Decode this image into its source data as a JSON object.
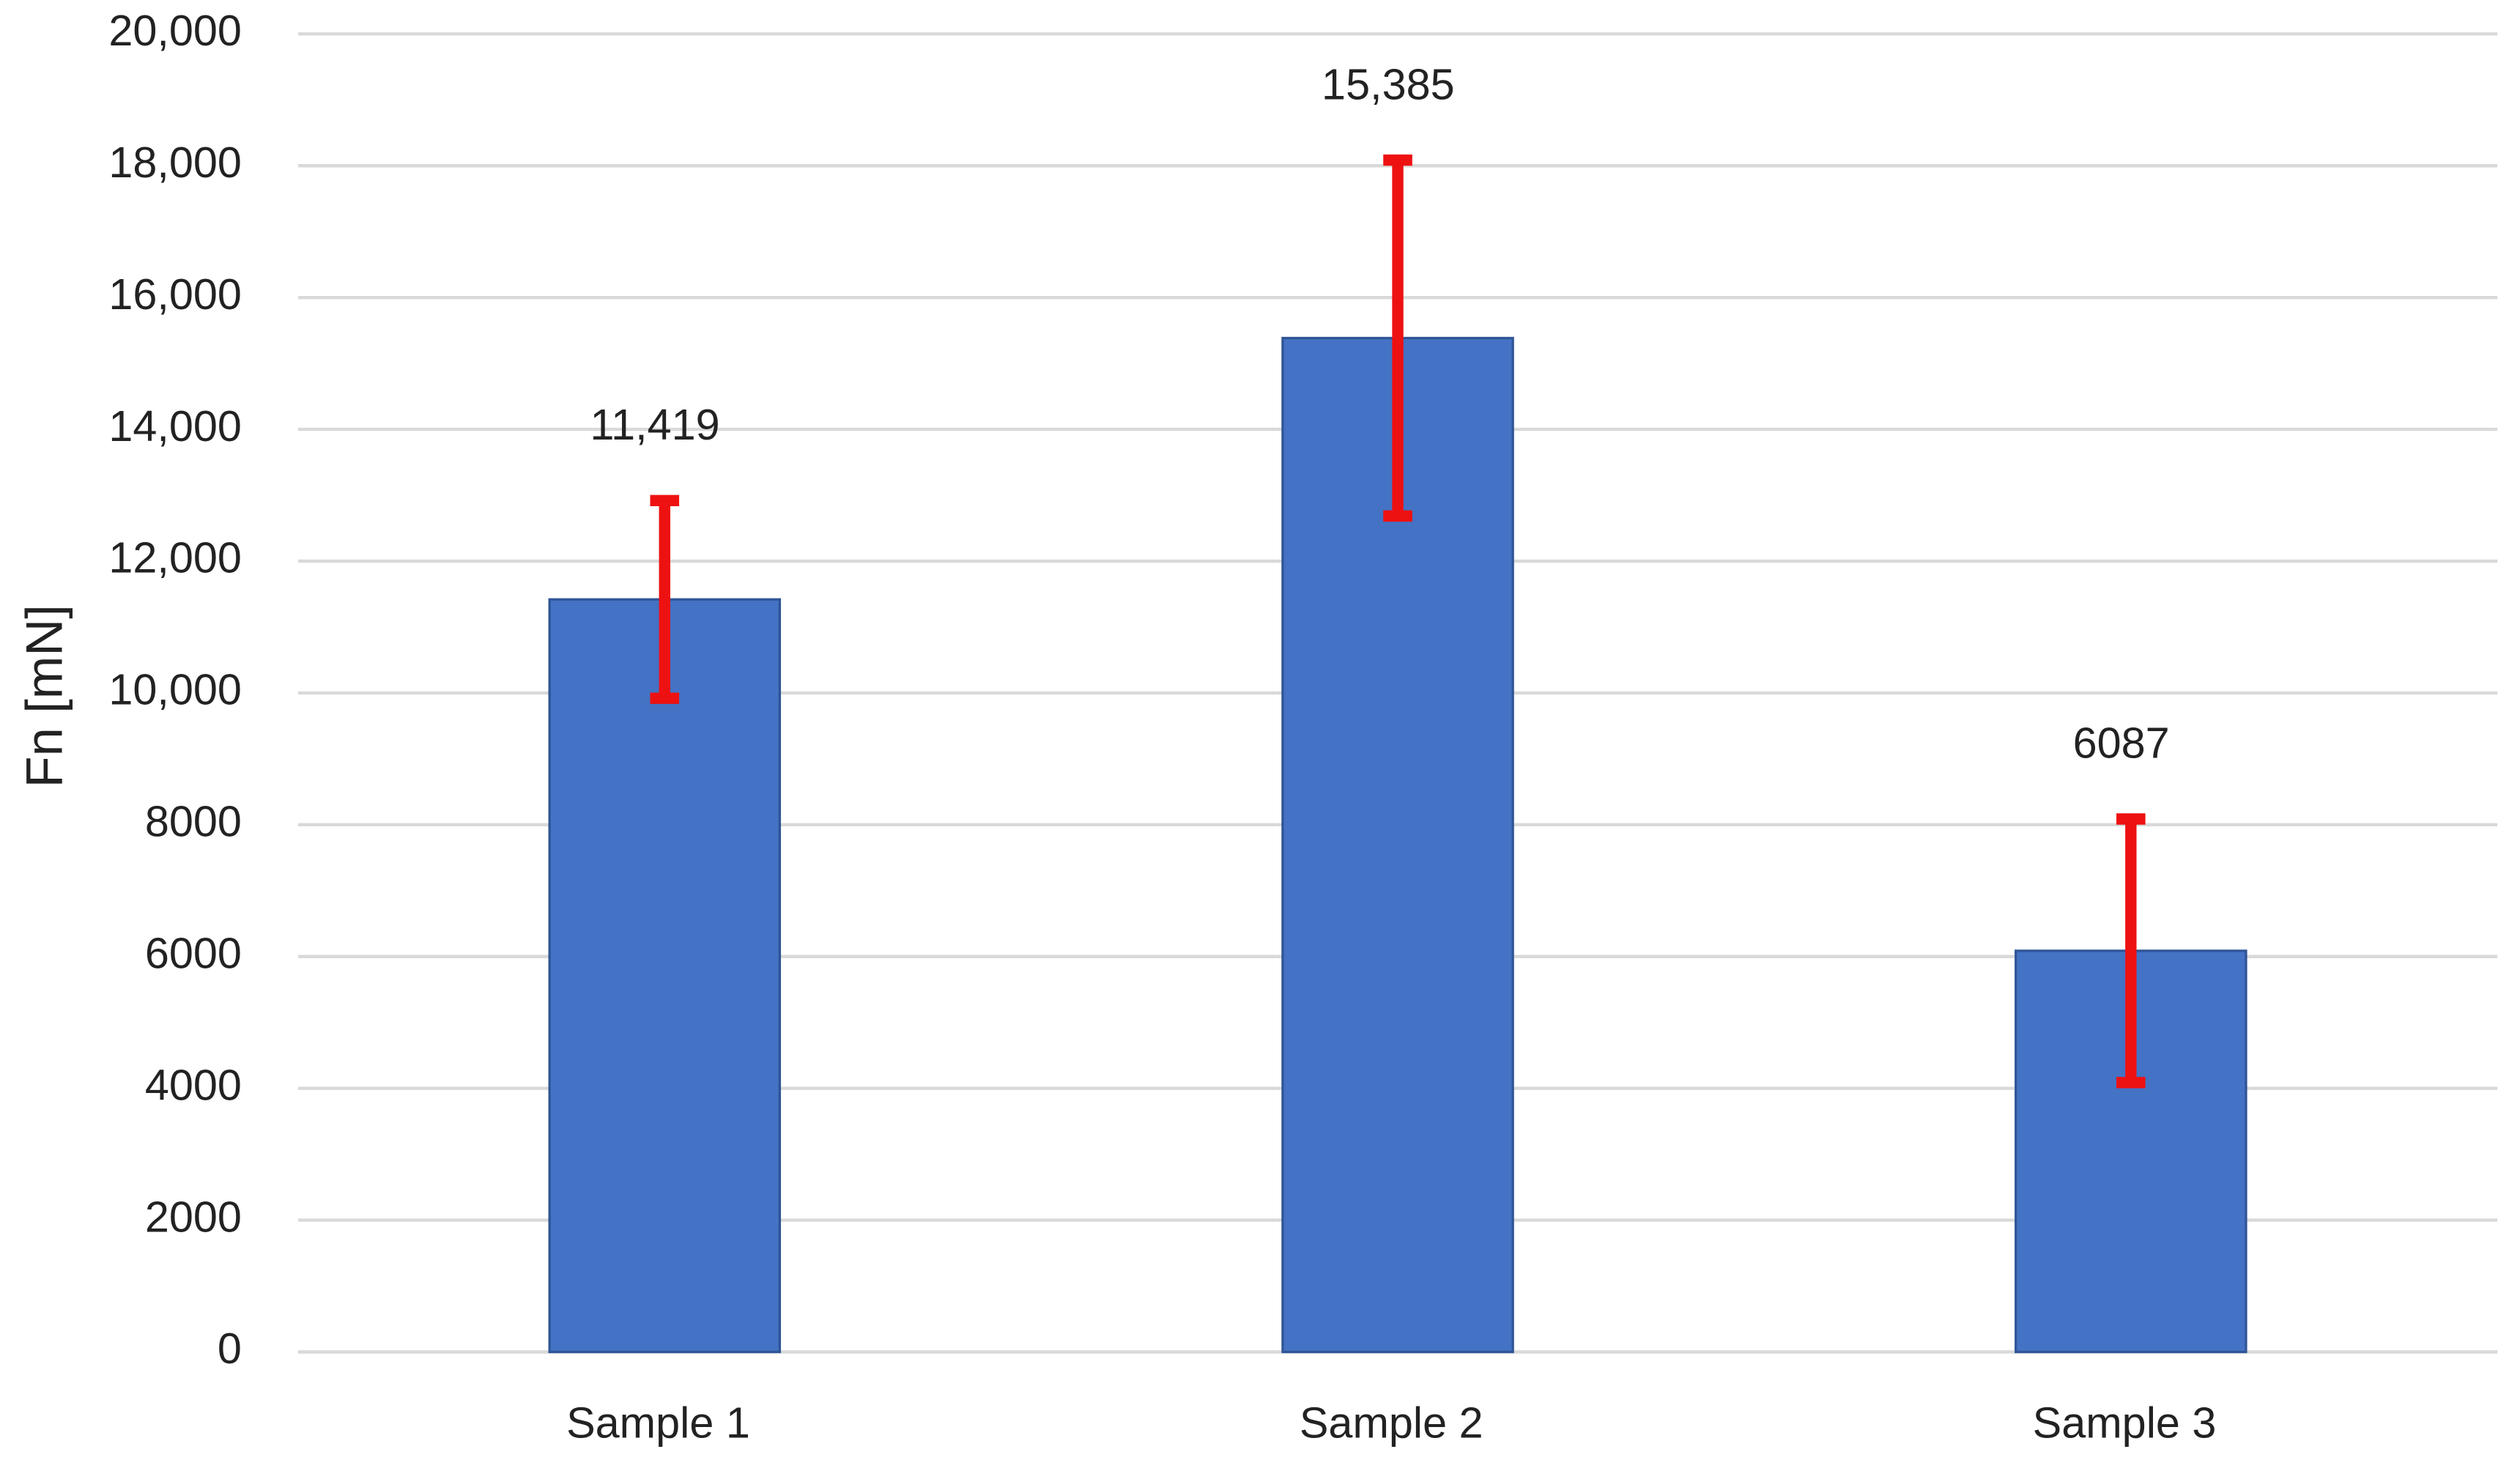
{
  "chart_data": {
    "type": "bar",
    "y_label": "Fn [mN]",
    "categories": [
      "Sample 1",
      "Sample 2",
      "Sample 3"
    ],
    "values": [
      11419,
      15385,
      6087
    ],
    "value_labels": [
      "11,419",
      "15,385",
      "6087"
    ],
    "errors": [
      1500,
      2700,
      2000
    ],
    "color": "#4472c4",
    "error_color": "#ee1111",
    "ylim": [
      0,
      20000
    ],
    "yticks": [
      0,
      2000,
      4000,
      6000,
      8000,
      {
        "value": 10000,
        "label": "10,000"
      },
      {
        "value": 12000,
        "label": "12,000"
      },
      {
        "value": 14000,
        "label": "14,000"
      },
      {
        "value": 16000,
        "label": "16,000"
      },
      {
        "value": 18000,
        "label": "18,000"
      },
      {
        "value": 20000,
        "label": "20,000"
      }
    ],
    "grid": true
  }
}
